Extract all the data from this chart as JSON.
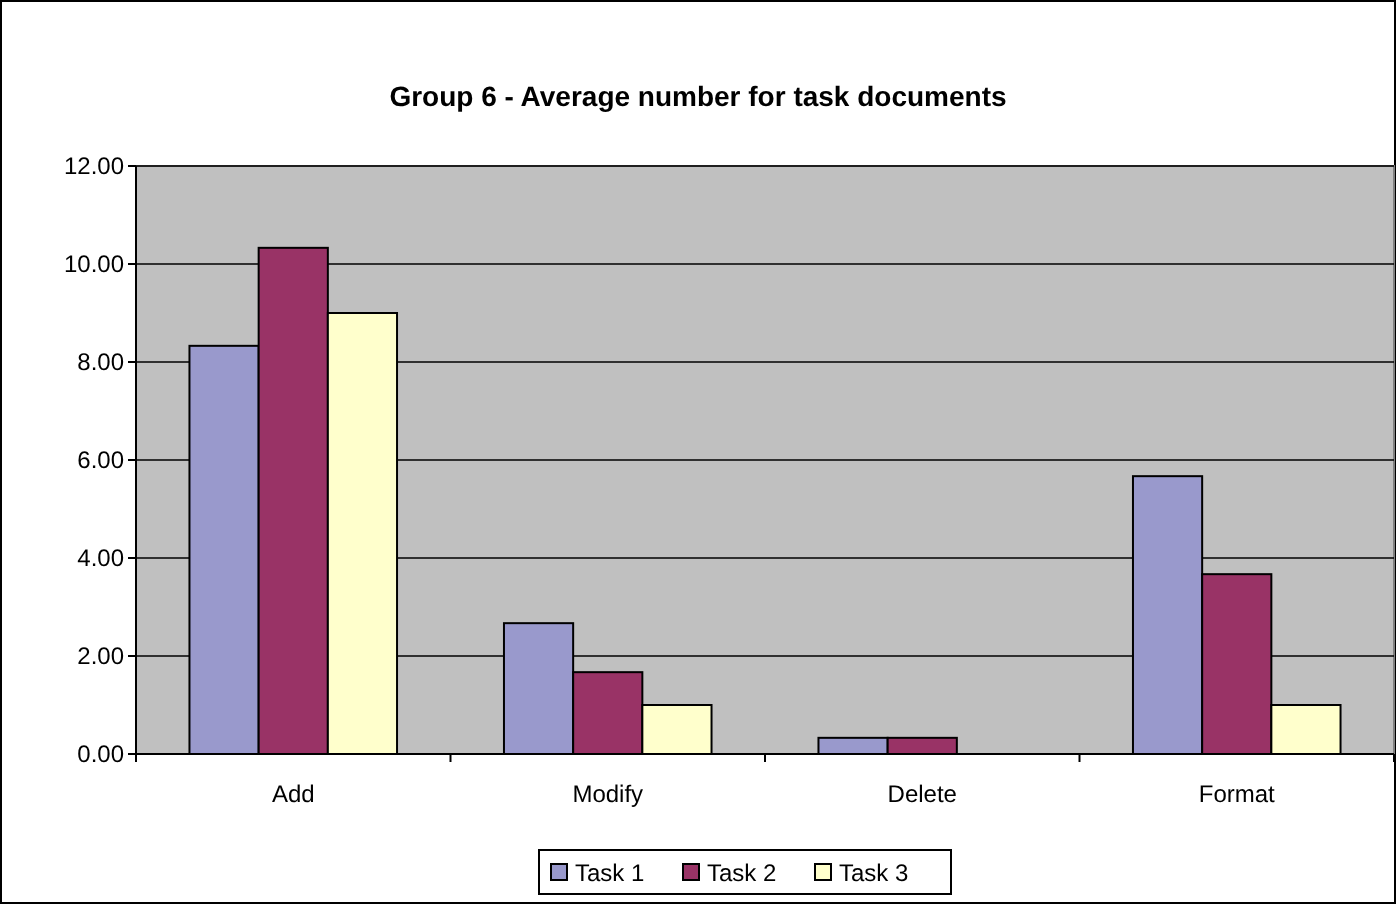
{
  "chart_data": {
    "type": "bar",
    "title": "Group 6 -  Average number for task documents",
    "categories": [
      "Add",
      "Modify",
      "Delete",
      "Format"
    ],
    "series": [
      {
        "name": "Task 1",
        "color": "#9999cc",
        "values": [
          8.33,
          2.67,
          0.33,
          5.67
        ]
      },
      {
        "name": "Task 2",
        "color": "#993366",
        "values": [
          10.33,
          1.67,
          0.33,
          3.67
        ]
      },
      {
        "name": "Task 3",
        "color": "#ffffcc",
        "values": [
          9,
          1,
          0,
          1
        ]
      }
    ],
    "ylim": [
      0,
      12
    ],
    "yticks": [
      {
        "value": 0,
        "label": "0.00"
      },
      {
        "value": 2,
        "label": "2.00"
      },
      {
        "value": 4,
        "label": "4.00"
      },
      {
        "value": 6,
        "label": "6.00"
      },
      {
        "value": 8,
        "label": "8.00"
      },
      {
        "value": 10,
        "label": "10.00"
      },
      {
        "value": 12,
        "label": "12.00"
      }
    ],
    "grid": "y",
    "legend": "bottom"
  }
}
